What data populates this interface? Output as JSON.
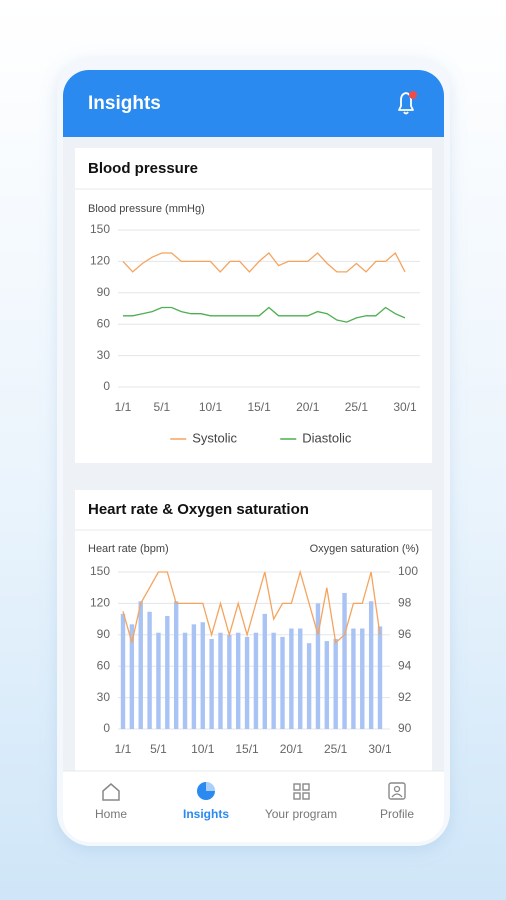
{
  "header": {
    "title": "Insights"
  },
  "nav": [
    "Home",
    "Insights",
    "Your program",
    "Profile"
  ],
  "chart_data": [
    {
      "type": "line",
      "title": "Blood pressure",
      "y_label": "Blood pressure (mmHg)",
      "categories": [
        "1/1",
        null,
        null,
        null,
        "5/1",
        null,
        null,
        null,
        null,
        "10/1",
        null,
        null,
        null,
        null,
        "15/1",
        null,
        null,
        null,
        null,
        "20/1",
        null,
        null,
        null,
        null,
        "25/1",
        null,
        null,
        null,
        null,
        "30/1"
      ],
      "ylim": [
        0,
        150
      ],
      "yticks": [
        0,
        30,
        60,
        90,
        120,
        150
      ],
      "grid": true,
      "legend": "bottom",
      "series": [
        {
          "name": "Systolic",
          "color": "#f5a45e",
          "values": [
            120,
            110,
            118,
            124,
            128,
            128,
            120,
            120,
            120,
            120,
            110,
            120,
            120,
            110,
            120,
            128,
            116,
            120,
            120,
            120,
            128,
            118,
            110,
            110,
            118,
            110,
            120,
            120,
            128,
            110
          ]
        },
        {
          "name": "Diastolic",
          "color": "#4caf50",
          "values": [
            68,
            68,
            70,
            72,
            76,
            76,
            72,
            70,
            70,
            68,
            68,
            68,
            68,
            68,
            68,
            76,
            68,
            68,
            68,
            68,
            72,
            70,
            64,
            62,
            66,
            68,
            68,
            76,
            70,
            66
          ]
        }
      ]
    },
    {
      "type": "bar_line",
      "title": "Heart rate & Oxygen saturation",
      "y_label": "Heart rate (bpm)",
      "y2_label": "Oxygen saturation (%)",
      "categories": [
        "1/1",
        null,
        null,
        null,
        "5/1",
        null,
        null,
        null,
        null,
        "10/1",
        null,
        null,
        null,
        null,
        "15/1",
        null,
        null,
        null,
        null,
        "20/1",
        null,
        null,
        null,
        null,
        "25/1",
        null,
        null,
        null,
        null,
        "30/1"
      ],
      "ylim": [
        0,
        150
      ],
      "yticks": [
        0,
        30,
        60,
        90,
        120,
        150
      ],
      "y2lim": [
        90,
        100
      ],
      "y2ticks": [
        90,
        92,
        94,
        96,
        98,
        100
      ],
      "grid": true,
      "series": [
        {
          "kind": "bar",
          "color": "#a8c3f4",
          "values": [
            110,
            100,
            122,
            112,
            92,
            108,
            122,
            92,
            100,
            102,
            86,
            92,
            90,
            92,
            88,
            92,
            110,
            92,
            88,
            96,
            96,
            82,
            120,
            84,
            86,
            130,
            96,
            96,
            122,
            98
          ]
        },
        {
          "kind": "line",
          "axis": "y2",
          "color": "#f5a45e",
          "values": [
            97.5,
            95.5,
            98,
            99,
            100,
            100,
            98,
            98,
            98,
            98,
            96,
            98,
            96,
            98,
            96,
            98,
            100,
            97,
            98,
            98,
            100,
            98,
            96,
            99,
            95.5,
            96,
            98,
            98,
            100,
            96
          ]
        }
      ]
    }
  ]
}
